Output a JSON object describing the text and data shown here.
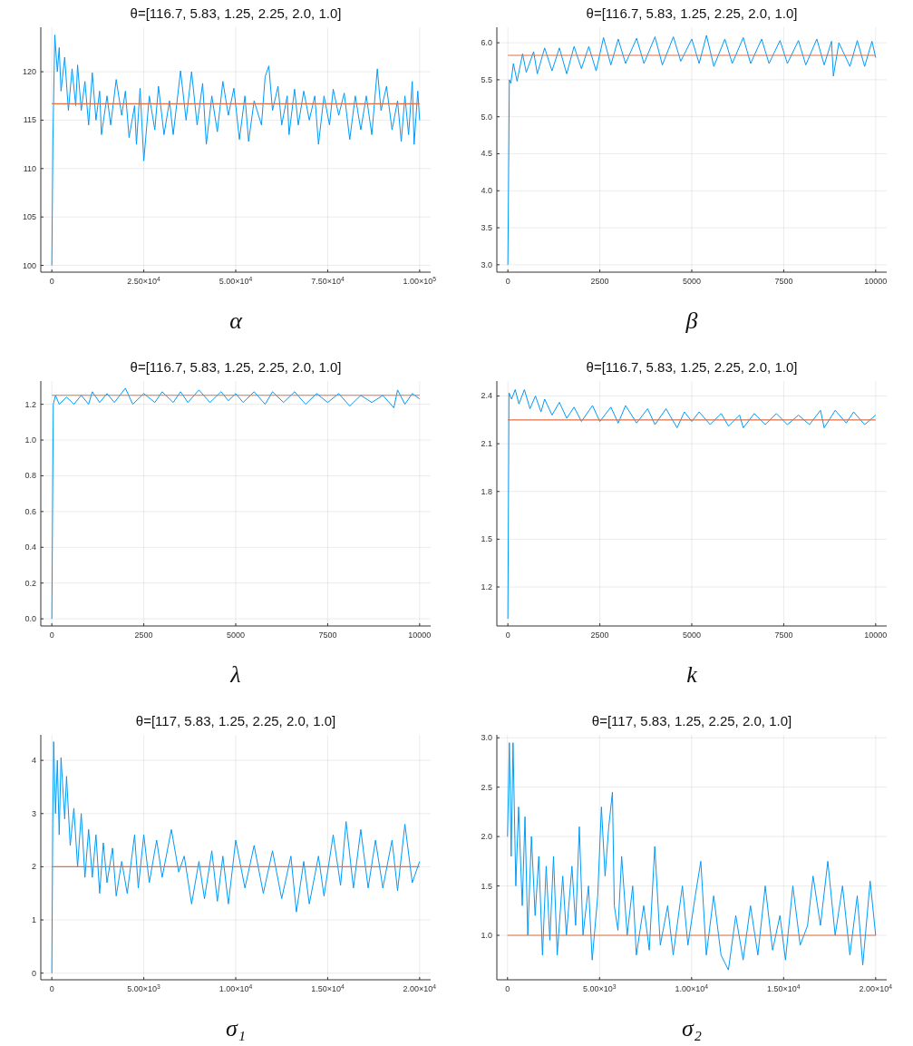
{
  "chart_data": [
    {
      "type": "line",
      "title": "θ=[116.7, 5.83, 1.25, 2.25, 2.0, 1.0]",
      "xlabel": "α",
      "xlim": [
        -3000,
        103000
      ],
      "ylim": [
        99.3,
        124.6
      ],
      "xticks": [
        0,
        {
          "value": 25000,
          "label": "2.50×10$^{4}$"
        },
        {
          "value": 50000,
          "label": "5.00×10$^{4}$"
        },
        {
          "value": 75000,
          "label": "7.50×10$^{4}$"
        },
        {
          "value": 100000,
          "label": "1.00×10$^{5}$"
        }
      ],
      "yticks": [
        100,
        105,
        110,
        115,
        120
      ],
      "grid": true,
      "ref_lines": [
        {
          "axis": "y",
          "value": 116.7,
          "color": "#e26f46"
        }
      ],
      "series": [
        {
          "color": "#009af9",
          "x": [
            0,
            300,
            800,
            1500,
            2000,
            2500,
            3500,
            4500,
            5500,
            6500,
            7000,
            8000,
            9000,
            10000,
            11000,
            12000,
            13000,
            13500,
            15000,
            16000,
            17500,
            19000,
            20000,
            21000,
            22500,
            23000,
            24000,
            25000,
            26500,
            28000,
            29000,
            30500,
            32000,
            33000,
            35000,
            36500,
            38000,
            39500,
            41000,
            42000,
            43500,
            45000,
            46500,
            48000,
            49500,
            51000,
            52500,
            53500,
            55000,
            57000,
            58000,
            59000,
            60000,
            61500,
            62500,
            64000,
            64500,
            66000,
            67000,
            68500,
            70000,
            71500,
            72500,
            74000,
            75500,
            76500,
            78000,
            79500,
            81000,
            82500,
            84000,
            85500,
            87000,
            88500,
            89500,
            91000,
            92500,
            94000,
            95000,
            96000,
            97000,
            98000,
            98500,
            99500,
            100000
          ],
          "values": [
            100,
            113,
            123.8,
            120,
            122.5,
            118,
            121.5,
            116,
            120.3,
            116.5,
            120.7,
            116,
            119,
            114.5,
            119.9,
            115,
            118,
            113.5,
            117.5,
            114.5,
            119.2,
            115.5,
            118,
            113.2,
            116.5,
            112.5,
            118.3,
            110.8,
            117.5,
            114,
            118.5,
            113.5,
            117,
            113.5,
            120.1,
            115,
            120,
            114.5,
            118.8,
            112.5,
            117.5,
            113.8,
            119,
            115.5,
            118.3,
            113,
            117.5,
            112.8,
            117,
            114.5,
            119.5,
            120.6,
            116,
            118.5,
            114.5,
            117.5,
            113.5,
            118.2,
            114.5,
            118,
            115,
            117.5,
            112.5,
            117.5,
            114.5,
            118.2,
            115.5,
            117.8,
            113,
            117.5,
            114,
            117.5,
            113.5,
            120.3,
            116,
            118.5,
            114,
            117,
            112.8,
            117.5,
            113.5,
            119,
            112.5,
            118,
            115
          ]
        }
      ]
    },
    {
      "type": "line",
      "title": "θ=[116.7, 5.83, 1.25, 2.25, 2.0, 1.0]",
      "xlabel": "β",
      "xlim": [
        -300,
        10300
      ],
      "ylim": [
        2.9,
        6.21
      ],
      "xticks": [
        0,
        2500,
        5000,
        7500,
        10000
      ],
      "yticks": [
        {
          "value": 3,
          "label": "3.0"
        },
        3.5,
        {
          "value": 4,
          "label": "4.0"
        },
        4.5,
        {
          "value": 5,
          "label": "5.0"
        },
        5.5,
        {
          "value": 6,
          "label": "6.0"
        }
      ],
      "grid": true,
      "ref_lines": [
        {
          "axis": "y",
          "value": 5.83,
          "color": "#e26f46"
        }
      ],
      "series": [
        {
          "color": "#009af9",
          "x": [
            0,
            40,
            80,
            150,
            250,
            400,
            500,
            700,
            800,
            1000,
            1200,
            1400,
            1600,
            1800,
            2000,
            2200,
            2400,
            2600,
            2800,
            3000,
            3200,
            3500,
            3700,
            4000,
            4200,
            4500,
            4700,
            5000,
            5200,
            5400,
            5600,
            5900,
            6100,
            6400,
            6600,
            6900,
            7100,
            7400,
            7600,
            7900,
            8100,
            8400,
            8600,
            8800,
            8850,
            9000,
            9300,
            9500,
            9700,
            9900,
            10000
          ],
          "values": [
            3.0,
            5.5,
            5.45,
            5.72,
            5.48,
            5.85,
            5.6,
            5.88,
            5.58,
            5.93,
            5.62,
            5.93,
            5.58,
            5.95,
            5.65,
            5.95,
            5.62,
            6.07,
            5.7,
            6.05,
            5.72,
            6.06,
            5.72,
            6.08,
            5.7,
            6.08,
            5.75,
            6.05,
            5.72,
            6.1,
            5.68,
            6.05,
            5.72,
            6.07,
            5.72,
            6.05,
            5.72,
            6.03,
            5.72,
            6.03,
            5.7,
            6.05,
            5.7,
            6.02,
            5.55,
            6.0,
            5.68,
            6.03,
            5.68,
            6.02,
            5.8
          ]
        }
      ]
    },
    {
      "type": "line",
      "title": "θ=[116.7, 5.83, 1.25, 2.25, 2.0, 1.0]",
      "xlabel": "λ",
      "xlim": [
        -300,
        10300
      ],
      "ylim": [
        -0.04,
        1.33
      ],
      "xticks": [
        0,
        2500,
        5000,
        7500,
        10000
      ],
      "yticks": [
        {
          "value": 0,
          "label": "0.0"
        },
        0.2,
        0.4,
        0.6,
        0.8,
        {
          "value": 1,
          "label": "1.0"
        },
        1.2
      ],
      "grid": true,
      "ref_lines": [
        {
          "axis": "y",
          "value": 1.25,
          "color": "#e26f46"
        }
      ],
      "series": [
        {
          "color": "#009af9",
          "x": [
            0,
            40,
            100,
            200,
            400,
            600,
            800,
            1000,
            1100,
            1300,
            1500,
            1700,
            2000,
            2200,
            2500,
            2800,
            3000,
            3300,
            3500,
            3700,
            4000,
            4300,
            4600,
            4800,
            5000,
            5200,
            5500,
            5800,
            6000,
            6300,
            6600,
            6900,
            7200,
            7500,
            7800,
            8100,
            8400,
            8700,
            9000,
            9300,
            9400,
            9600,
            9800,
            10000
          ],
          "values": [
            0,
            1.2,
            1.25,
            1.2,
            1.24,
            1.2,
            1.25,
            1.2,
            1.27,
            1.21,
            1.26,
            1.21,
            1.29,
            1.2,
            1.26,
            1.21,
            1.27,
            1.21,
            1.27,
            1.21,
            1.28,
            1.21,
            1.27,
            1.22,
            1.26,
            1.21,
            1.27,
            1.2,
            1.27,
            1.21,
            1.27,
            1.2,
            1.26,
            1.21,
            1.26,
            1.19,
            1.25,
            1.21,
            1.25,
            1.18,
            1.28,
            1.2,
            1.26,
            1.23
          ]
        }
      ]
    },
    {
      "type": "line",
      "title": "θ=[116.7, 5.83, 1.25, 2.25, 2.0, 1.0]",
      "xlabel": "k",
      "xlim": [
        -300,
        10300
      ],
      "ylim": [
        0.955,
        2.494
      ],
      "xticks": [
        0,
        2500,
        5000,
        7500,
        10000
      ],
      "yticks": [
        1.2,
        1.5,
        1.8,
        2.1,
        2.4
      ],
      "grid": true,
      "ref_lines": [
        {
          "axis": "y",
          "value": 2.25,
          "color": "#e26f46"
        }
      ],
      "series": [
        {
          "color": "#009af9",
          "x": [
            0,
            30,
            100,
            200,
            300,
            450,
            600,
            750,
            900,
            1000,
            1200,
            1400,
            1600,
            1800,
            2000,
            2300,
            2500,
            2800,
            3000,
            3200,
            3500,
            3800,
            4000,
            4300,
            4600,
            4800,
            5000,
            5200,
            5500,
            5800,
            6000,
            6300,
            6400,
            6700,
            7000,
            7300,
            7600,
            7900,
            8200,
            8500,
            8600,
            8900,
            9200,
            9400,
            9700,
            10000
          ],
          "values": [
            1.0,
            2.42,
            2.38,
            2.44,
            2.35,
            2.44,
            2.32,
            2.4,
            2.3,
            2.38,
            2.28,
            2.36,
            2.26,
            2.33,
            2.24,
            2.34,
            2.24,
            2.33,
            2.23,
            2.34,
            2.23,
            2.32,
            2.22,
            2.32,
            2.2,
            2.3,
            2.24,
            2.3,
            2.22,
            2.29,
            2.21,
            2.28,
            2.2,
            2.29,
            2.22,
            2.29,
            2.22,
            2.28,
            2.22,
            2.31,
            2.2,
            2.31,
            2.23,
            2.3,
            2.22,
            2.28
          ]
        }
      ]
    },
    {
      "type": "line",
      "title": "θ=[117, 5.83, 1.25, 2.25, 2.0, 1.0]",
      "xlabel": "σ₁",
      "xlim": [
        -600,
        20600
      ],
      "ylim": [
        -0.125,
        4.48
      ],
      "xticks": [
        0,
        {
          "value": 5000,
          "label": "5.00×10$^{3}$"
        },
        {
          "value": 10000,
          "label": "1.00×10$^{4}$"
        },
        {
          "value": 15000,
          "label": "1.50×10$^{4}$"
        },
        {
          "value": 20000,
          "label": "2.00×10$^{4}$"
        }
      ],
      "yticks": [
        0,
        1,
        2,
        3,
        4
      ],
      "grid": true,
      "ref_lines": [
        {
          "axis": "y",
          "value": 2,
          "color": "#e26f46"
        }
      ],
      "series": [
        {
          "color": "#009af9",
          "x": [
            0,
            50,
            100,
            200,
            300,
            400,
            500,
            700,
            800,
            1000,
            1200,
            1400,
            1600,
            1800,
            2000,
            2200,
            2400,
            2600,
            2800,
            3000,
            3300,
            3500,
            3800,
            4100,
            4500,
            4700,
            5000,
            5300,
            5700,
            6000,
            6500,
            6900,
            7200,
            7600,
            8000,
            8300,
            8700,
            9000,
            9300,
            9600,
            10000,
            10500,
            11000,
            11500,
            12000,
            12500,
            13000,
            13300,
            13700,
            14000,
            14500,
            14800,
            15300,
            15700,
            16000,
            16400,
            16800,
            17200,
            17600,
            18000,
            18500,
            18800,
            19200,
            19600,
            20000
          ],
          "values": [
            0,
            2.8,
            4.35,
            3.0,
            4.0,
            2.6,
            4.05,
            2.9,
            3.7,
            2.4,
            3.1,
            2.0,
            3.0,
            1.8,
            2.7,
            1.8,
            2.6,
            1.5,
            2.45,
            1.7,
            2.35,
            1.45,
            2.1,
            1.5,
            2.6,
            1.6,
            2.6,
            1.7,
            2.5,
            1.8,
            2.7,
            1.9,
            2.2,
            1.3,
            2.1,
            1.4,
            2.3,
            1.35,
            2.2,
            1.3,
            2.5,
            1.6,
            2.4,
            1.5,
            2.3,
            1.4,
            2.2,
            1.15,
            2.1,
            1.3,
            2.2,
            1.45,
            2.6,
            1.65,
            2.85,
            1.6,
            2.7,
            1.6,
            2.5,
            1.6,
            2.5,
            1.55,
            2.8,
            1.7,
            2.1
          ]
        }
      ]
    },
    {
      "type": "line",
      "title": "θ=[117, 5.83, 1.25, 2.25, 2.0, 1.0]",
      "xlabel": "σ₂",
      "xlim": [
        -580,
        20600
      ],
      "ylim": [
        0.55,
        3.03
      ],
      "xticks": [
        0,
        {
          "value": 5000,
          "label": "5.00×10$^{3}$"
        },
        {
          "value": 10000,
          "label": "1.00×10$^{4}$"
        },
        {
          "value": 15000,
          "label": "1.50×10$^{4}$"
        },
        {
          "value": 20000,
          "label": "2.00×10$^{4}$"
        }
      ],
      "yticks": [
        {
          "value": 1,
          "label": "1.0"
        },
        1.5,
        {
          "value": 2,
          "label": "2.0"
        },
        2.5,
        {
          "value": 3,
          "label": "3.0"
        }
      ],
      "grid": true,
      "ref_lines": [
        {
          "axis": "y",
          "value": 1,
          "color": "#e26f46"
        }
      ],
      "series": [
        {
          "color": "#009af9",
          "x": [
            0,
            100,
            200,
            300,
            450,
            600,
            800,
            950,
            1100,
            1300,
            1500,
            1700,
            1900,
            2100,
            2300,
            2500,
            2700,
            3000,
            3200,
            3500,
            3700,
            3900,
            4100,
            4400,
            4600,
            4900,
            5100,
            5300,
            5500,
            5700,
            5800,
            6000,
            6200,
            6500,
            6800,
            7000,
            7400,
            7700,
            8000,
            8300,
            8700,
            9000,
            9500,
            9800,
            10200,
            10500,
            10800,
            11200,
            11600,
            12000,
            12400,
            12800,
            13200,
            13600,
            14000,
            14400,
            14800,
            15100,
            15500,
            15900,
            16300,
            16600,
            17000,
            17400,
            17800,
            18200,
            18600,
            19000,
            19300,
            19700,
            20000
          ],
          "values": [
            2.0,
            2.95,
            1.8,
            2.95,
            1.5,
            2.3,
            1.3,
            2.2,
            1.0,
            2.0,
            1.2,
            1.8,
            0.8,
            1.7,
            0.95,
            1.8,
            0.8,
            1.6,
            1.0,
            1.7,
            1.1,
            2.1,
            1.0,
            1.5,
            0.75,
            1.4,
            2.3,
            1.6,
            2.1,
            2.45,
            1.3,
            1.05,
            1.8,
            1.0,
            1.5,
            0.8,
            1.3,
            0.85,
            1.9,
            0.9,
            1.3,
            0.8,
            1.5,
            0.9,
            1.4,
            1.75,
            0.8,
            1.4,
            0.8,
            0.65,
            1.2,
            0.75,
            1.3,
            0.8,
            1.5,
            0.85,
            1.2,
            0.75,
            1.5,
            0.9,
            1.1,
            1.6,
            1.1,
            1.75,
            1.0,
            1.5,
            0.8,
            1.4,
            0.7,
            1.55,
            1.0
          ]
        }
      ]
    }
  ]
}
